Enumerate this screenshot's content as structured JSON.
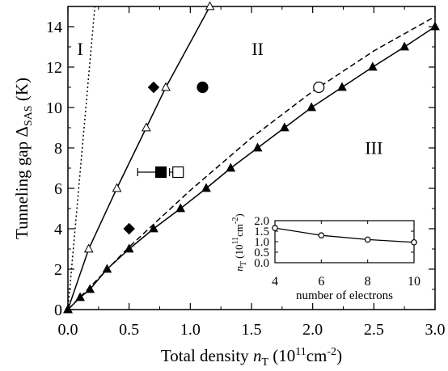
{
  "chart_data": [
    {
      "type": "scatter",
      "xlabel": "Total density",
      "xlabel_var": "n",
      "xlabel_sub": "T",
      "xlabel_unit_pre": "(10",
      "xlabel_unit_exp": "11",
      "xlabel_unit_mid": "cm",
      "xlabel_unit_exp2": "-2",
      "xlabel_unit_post": ")",
      "ylabel": "Tunneling gap Δ",
      "ylabel_sub": "SAS",
      "ylabel_unit": " (K)",
      "xlim": [
        0,
        3.0
      ],
      "ylim": [
        0,
        15
      ],
      "xticks": [
        "0.0",
        "0.5",
        "1.0",
        "1.5",
        "2.0",
        "2.5",
        "3.0"
      ],
      "xtick_values": [
        0,
        0.5,
        1.0,
        1.5,
        2.0,
        2.5,
        3.0
      ],
      "yticks": [
        "0",
        "2",
        "4",
        "6",
        "8",
        "10",
        "12",
        "14"
      ],
      "ytick_values": [
        0,
        2,
        4,
        6,
        8,
        10,
        12,
        14
      ],
      "region_labels": [
        {
          "text": "I",
          "x": 0.1,
          "y": 12.6
        },
        {
          "text": "II",
          "x": 1.55,
          "y": 12.6
        },
        {
          "text": "III",
          "x": 2.5,
          "y": 7.7
        }
      ],
      "series": [
        {
          "marker": "open-triangle",
          "style": "solid",
          "x": [
            0,
            0.17,
            0.4,
            0.64,
            0.8,
            1.16
          ],
          "y": [
            0,
            3.0,
            6.0,
            9.0,
            11.0,
            15.0
          ]
        },
        {
          "marker": "filled-triangle",
          "style": "solid",
          "x": [
            0,
            0.1,
            0.18,
            0.32,
            0.5,
            0.7,
            0.92,
            1.13,
            1.33,
            1.55,
            1.77,
            1.99,
            2.24,
            2.49,
            2.75,
            3.0
          ],
          "y": [
            0,
            0.6,
            1.0,
            2.0,
            3.0,
            4.0,
            5.0,
            6.0,
            7.0,
            8.0,
            9.0,
            10.0,
            11.0,
            12.0,
            13.0,
            14.0
          ]
        },
        {
          "marker": "none",
          "style": "dashed",
          "x": [
            0,
            0.5,
            1.0,
            1.5,
            2.0,
            2.5,
            3.0
          ],
          "y": [
            0,
            3.1,
            5.9,
            8.5,
            10.8,
            12.8,
            14.5
          ]
        },
        {
          "marker": "none",
          "style": "dotted",
          "x": [
            0,
            0.22
          ],
          "y": [
            0,
            15
          ]
        },
        {
          "marker": "filled-diamond",
          "x": [
            0.7,
            0.5
          ],
          "y": [
            11.0,
            4.0
          ]
        },
        {
          "marker": "filled-circle",
          "x": [
            1.1
          ],
          "y": [
            11.0
          ]
        },
        {
          "marker": "open-circle",
          "x": [
            2.05
          ],
          "y": [
            11.0
          ]
        },
        {
          "marker": "filled-square",
          "x": [
            0.76
          ],
          "y": [
            6.8
          ],
          "xerr_left": 0.19
        },
        {
          "marker": "open-square",
          "x": [
            0.9
          ],
          "y": [
            6.8
          ],
          "xerr_left": 0.07
        }
      ]
    },
    {
      "type": "line",
      "inset": true,
      "xlabel": "number of electrons",
      "ylabel_var": "n",
      "ylabel_sub": "T",
      "ylabel_unit_pre": "(10",
      "ylabel_unit_exp": "11",
      "ylabel_unit_mid": "cm",
      "ylabel_unit_exp2": "-2",
      "ylabel_unit_post": ")",
      "xlim": [
        4,
        10
      ],
      "ylim": [
        0,
        2.0
      ],
      "xticks": [
        "4",
        "6",
        "8",
        "10"
      ],
      "xtick_values": [
        4,
        6,
        8,
        10
      ],
      "yticks": [
        "0.0",
        "0.5",
        "1.0",
        "1.5",
        "2.0"
      ],
      "ytick_values": [
        0,
        0.5,
        1.0,
        1.5,
        2.0
      ],
      "series": [
        {
          "marker": "open-circle",
          "x": [
            4,
            6,
            8,
            10
          ],
          "y": [
            1.65,
            1.3,
            1.1,
            0.97
          ]
        }
      ]
    }
  ]
}
